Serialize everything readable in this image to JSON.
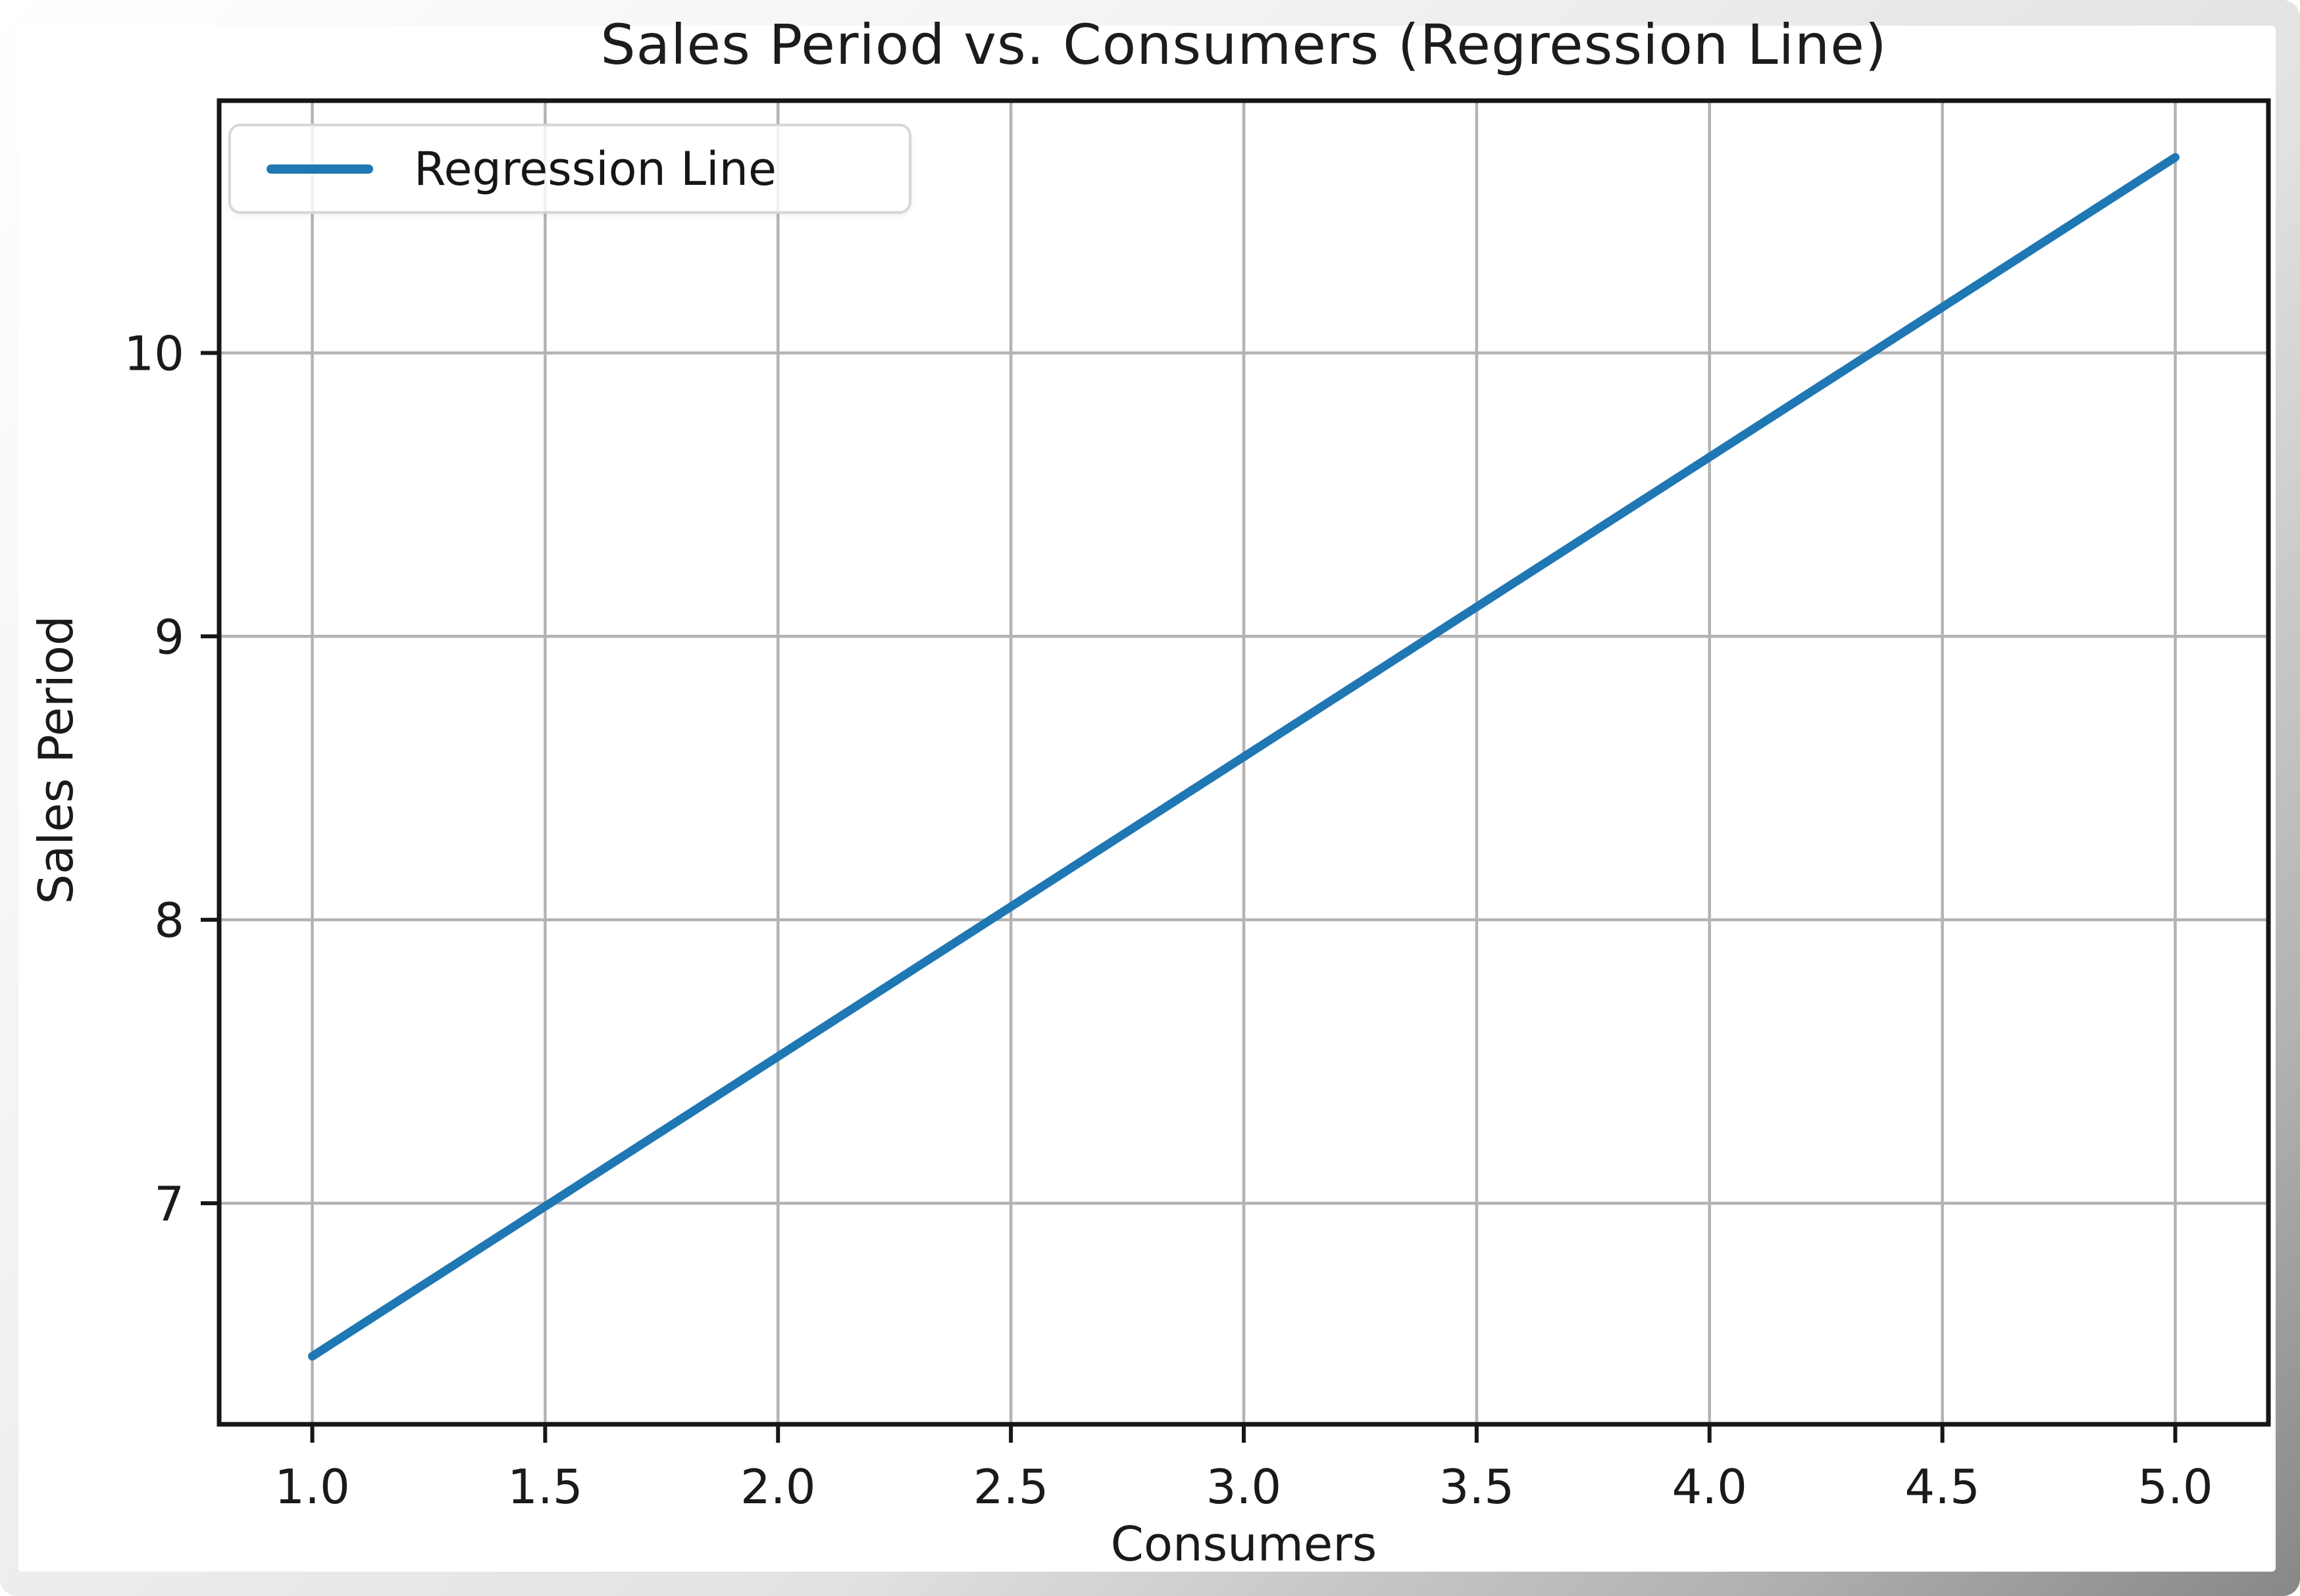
{
  "figure": {
    "background": "#ffffff",
    "frame_shadow_light": "#f3f3f3",
    "frame_shadow_dark": "#878787"
  },
  "colors": {
    "line": "#1f77b4",
    "grid": "#b3b3b3",
    "axis": "#161616",
    "tick_text": "#1a1a1a",
    "legend_border": "#d7d7d7"
  },
  "chart_data": {
    "type": "line",
    "title": "Sales Period vs. Consumers (Regression Line)",
    "xlabel": "Consumers",
    "ylabel": "Sales Period",
    "xlim": [
      0.8,
      5.2
    ],
    "ylim": [
      6.22,
      10.89
    ],
    "x_ticks": [
      1.0,
      1.5,
      2.0,
      2.5,
      3.0,
      3.5,
      4.0,
      4.5,
      5.0
    ],
    "x_tick_labels": [
      "1.0",
      "1.5",
      "2.0",
      "2.5",
      "3.0",
      "3.5",
      "4.0",
      "4.5",
      "5.0"
    ],
    "y_ticks": [
      7,
      8,
      9,
      10
    ],
    "y_tick_labels": [
      "7",
      "8",
      "9",
      "10"
    ],
    "grid": true,
    "legend_position": "upper left",
    "series": [
      {
        "name": "Regression Line",
        "type": "line",
        "color": "#1f77b4",
        "points": [
          [
            1.0,
            6.46
          ],
          [
            5.0,
            10.69
          ]
        ]
      }
    ],
    "legend": {
      "entries": [
        {
          "label": "Regression Line",
          "color": "#1f77b4"
        }
      ]
    }
  }
}
